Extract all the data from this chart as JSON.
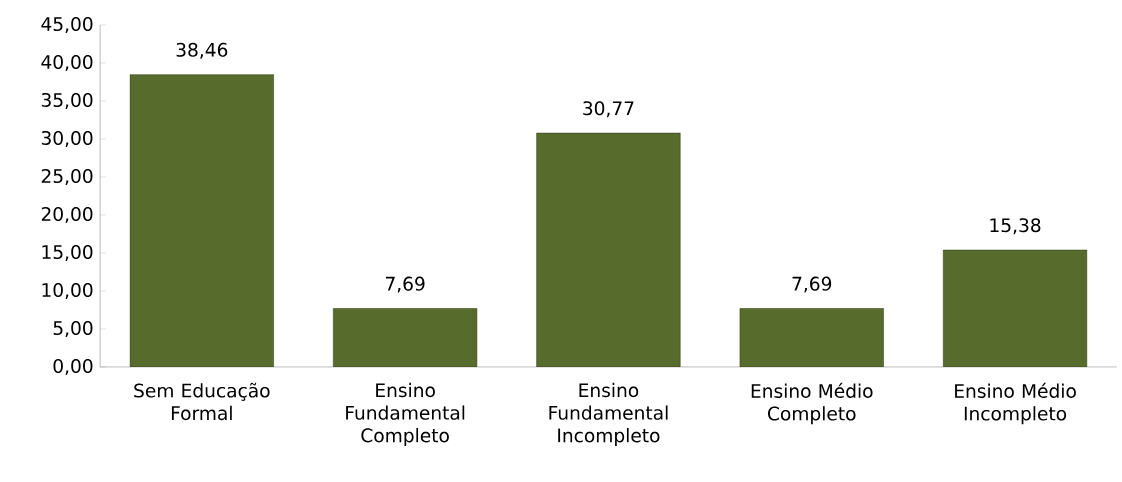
{
  "chart_data": {
    "type": "bar",
    "categories": [
      "Sem Educação Formal",
      "Ensino Fundamental Completo",
      "Ensino Fundamental Incompleto",
      "Ensino Médio Completo",
      "Ensino Médio Incompleto"
    ],
    "values": [
      38.46,
      7.69,
      30.77,
      7.69,
      15.38
    ],
    "value_labels": [
      "38,46",
      "7,69",
      "30,77",
      "7,69",
      "15,38"
    ],
    "color": "#566b2c",
    "ylim": [
      0,
      45
    ],
    "yticks": [
      {
        "value": 0,
        "label": "0,00"
      },
      {
        "value": 5,
        "label": "5,00"
      },
      {
        "value": 10,
        "label": "10,00"
      },
      {
        "value": 15,
        "label": "15,00"
      },
      {
        "value": 20,
        "label": "20,00"
      },
      {
        "value": 25,
        "label": "25,00"
      },
      {
        "value": 30,
        "label": "30,00"
      },
      {
        "value": 35,
        "label": "35,00"
      },
      {
        "value": 40,
        "label": "40,00"
      },
      {
        "value": 45,
        "label": "45,00"
      }
    ]
  }
}
